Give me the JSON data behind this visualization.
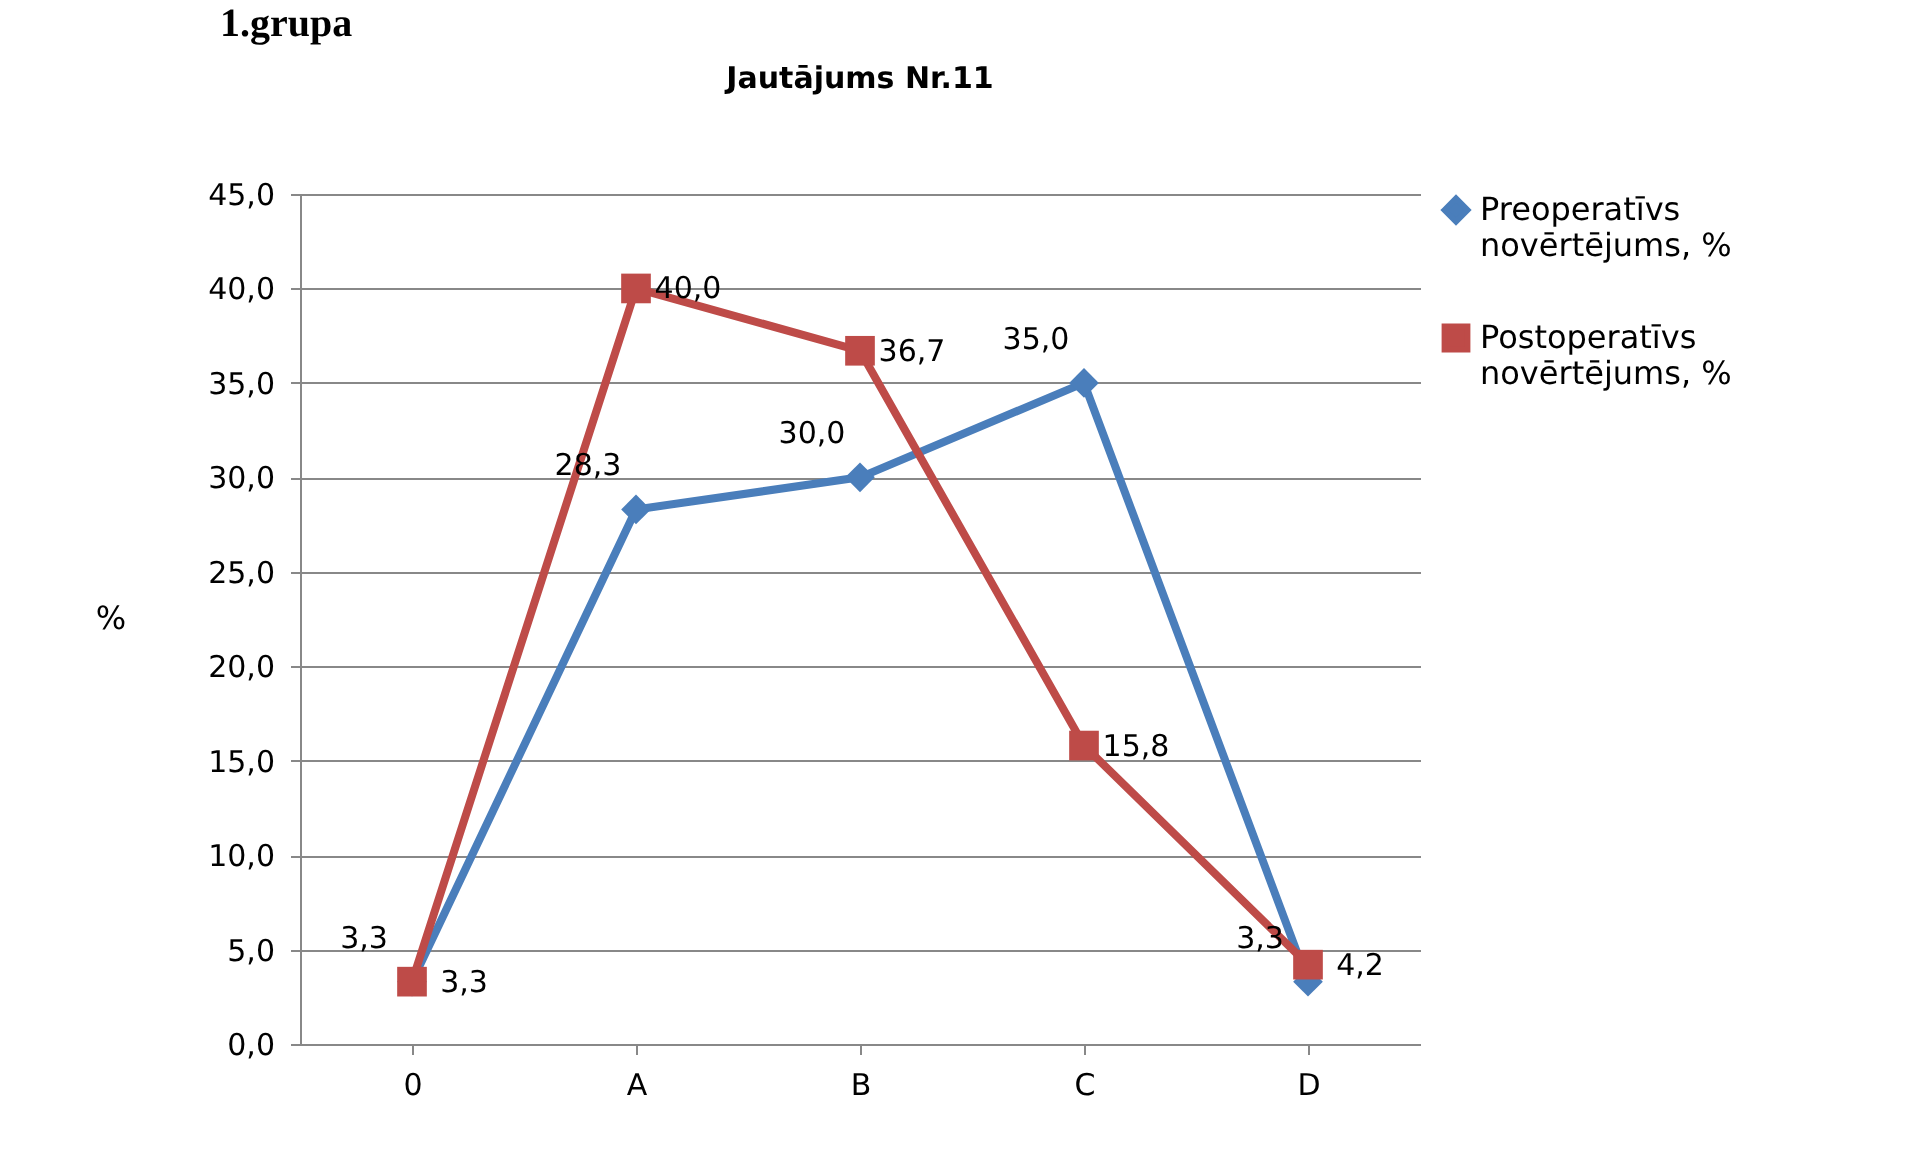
{
  "chart_data": {
    "type": "line",
    "title": "Jautājums Nr.11",
    "ylabel": "%",
    "annotations": [
      "1.grupa"
    ],
    "categories": [
      "0",
      "A",
      "B",
      "C",
      "D"
    ],
    "series": [
      {
        "name": "Preoperatīvs novērtējums, %",
        "color": "#4a7ebb",
        "marker": "diamond",
        "values": [
          3.3,
          28.3,
          30.0,
          35.0,
          3.3
        ],
        "value_labels": [
          "3,3",
          "28,3",
          "30,0",
          "35,0",
          "3,3"
        ]
      },
      {
        "name": "Postoperatīvs novērtējums, %",
        "color": "#be4b48",
        "marker": "square",
        "values": [
          3.3,
          40.0,
          36.7,
          15.8,
          4.2
        ],
        "value_labels": [
          "3,3",
          "40,0",
          "36,7",
          "15,8",
          "4,2"
        ]
      }
    ],
    "ylim": [
      0,
      45
    ],
    "yticks": [
      {
        "value": 0,
        "label": "0,0"
      },
      {
        "value": 5,
        "label": "5,0"
      },
      {
        "value": 10,
        "label": "10,0"
      },
      {
        "value": 15,
        "label": "15,0"
      },
      {
        "value": 20,
        "label": "20,0"
      },
      {
        "value": 25,
        "label": "25,0"
      },
      {
        "value": 30,
        "label": "30,0"
      },
      {
        "value": 35,
        "label": "35,0"
      },
      {
        "value": 40,
        "label": "40,0"
      },
      {
        "value": 45,
        "label": "45,0"
      }
    ],
    "grid": "y",
    "legend": "right",
    "line_style": "solid"
  }
}
